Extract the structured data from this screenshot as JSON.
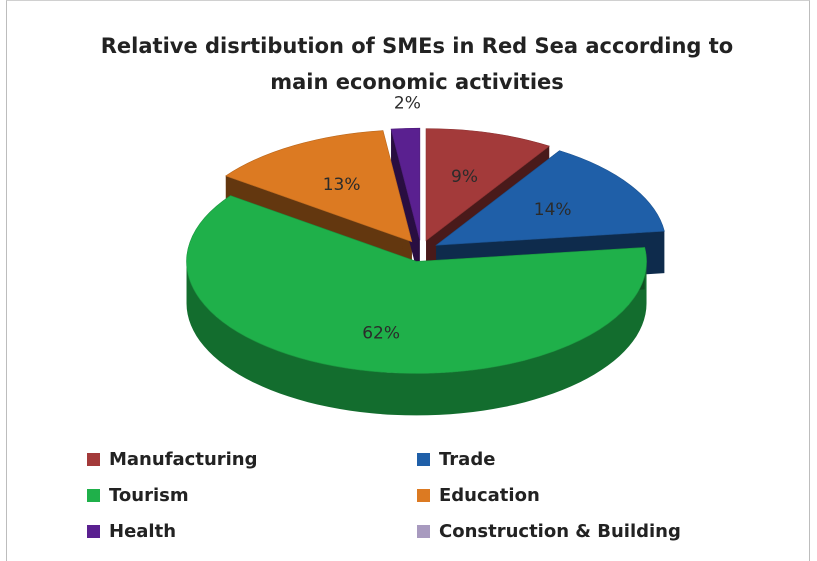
{
  "chart_data": {
    "type": "pie",
    "title_lines": [
      "Relative disrtibution of SMEs in Red Sea according to",
      "main economic activities"
    ],
    "slices": [
      {
        "name": "Manufacturing",
        "value": 9,
        "label": "9%",
        "color": "#a33a3a"
      },
      {
        "name": "Trade",
        "value": 14,
        "label": "14%",
        "color": "#1f5fa8"
      },
      {
        "name": "Tourism",
        "value": 62,
        "label": "62%",
        "color": "#1fb04a"
      },
      {
        "name": "Education",
        "value": 13,
        "label": "13%",
        "color": "#dc7a22"
      },
      {
        "name": "Health",
        "value": 2,
        "label": "2%",
        "color": "#5a2090"
      },
      {
        "name": "Construction & Building",
        "value": 0,
        "label": "",
        "color": "#a89abf"
      }
    ],
    "legend_position": "bottom",
    "style": "3d-exploded"
  }
}
